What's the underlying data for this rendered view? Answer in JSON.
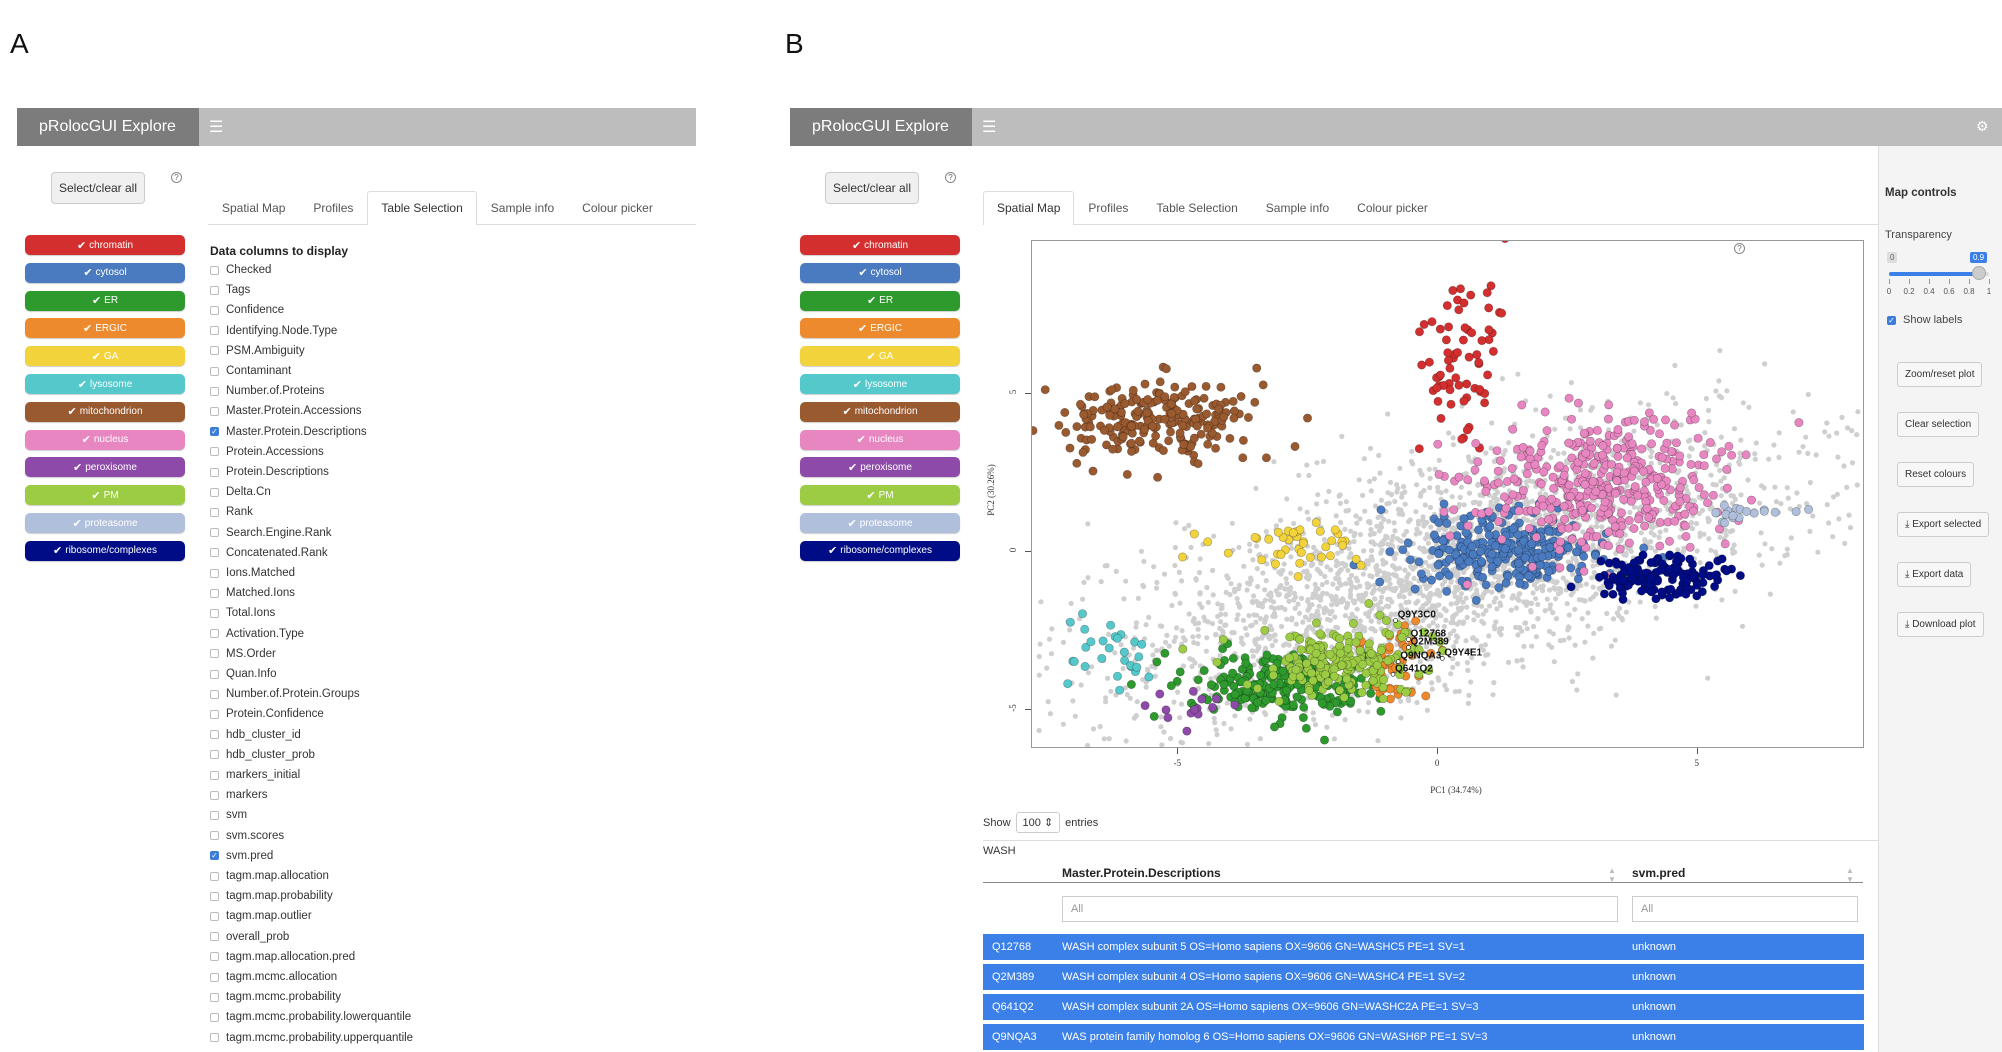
{
  "panels": {
    "a_letter": "A",
    "b_letter": "B"
  },
  "app": {
    "title": "pRolocGUI Explore",
    "menu_icon": "hamburger-icon",
    "settings_icon": "gear-icon"
  },
  "select_all_label": "Select/clear all",
  "classes": [
    {
      "label": "chromatin",
      "color": "#d32f2f"
    },
    {
      "label": "cytosol",
      "color": "#4a7abf"
    },
    {
      "label": "ER",
      "color": "#2e9a2e"
    },
    {
      "label": "ERGIC",
      "color": "#ee8a2e"
    },
    {
      "label": "GA",
      "color": "#f2d33c"
    },
    {
      "label": "lysosome",
      "color": "#55c8cc"
    },
    {
      "label": "mitochondrion",
      "color": "#9a5a30"
    },
    {
      "label": "nucleus",
      "color": "#e886c1"
    },
    {
      "label": "peroxisome",
      "color": "#8e4aa8"
    },
    {
      "label": "PM",
      "color": "#9ccc44"
    },
    {
      "label": "proteasome",
      "color": "#b0c0dc"
    },
    {
      "label": "ribosome/complexes",
      "color": "#000c86"
    }
  ],
  "tabs": [
    "Spatial Map",
    "Profiles",
    "Table Selection",
    "Sample info",
    "Colour picker"
  ],
  "table_selection": {
    "title": "Data columns to display",
    "columns": [
      {
        "name": "Checked",
        "checked": false
      },
      {
        "name": "Tags",
        "checked": false
      },
      {
        "name": "Confidence",
        "checked": false
      },
      {
        "name": "Identifying.Node.Type",
        "checked": false
      },
      {
        "name": "PSM.Ambiguity",
        "checked": false
      },
      {
        "name": "Contaminant",
        "checked": false
      },
      {
        "name": "Number.of.Proteins",
        "checked": false
      },
      {
        "name": "Master.Protein.Accessions",
        "checked": false
      },
      {
        "name": "Master.Protein.Descriptions",
        "checked": true
      },
      {
        "name": "Protein.Accessions",
        "checked": false
      },
      {
        "name": "Protein.Descriptions",
        "checked": false
      },
      {
        "name": "Delta.Cn",
        "checked": false
      },
      {
        "name": "Rank",
        "checked": false
      },
      {
        "name": "Search.Engine.Rank",
        "checked": false
      },
      {
        "name": "Concatenated.Rank",
        "checked": false
      },
      {
        "name": "Ions.Matched",
        "checked": false
      },
      {
        "name": "Matched.Ions",
        "checked": false
      },
      {
        "name": "Total.Ions",
        "checked": false
      },
      {
        "name": "Activation.Type",
        "checked": false
      },
      {
        "name": "MS.Order",
        "checked": false
      },
      {
        "name": "Quan.Info",
        "checked": false
      },
      {
        "name": "Number.of.Protein.Groups",
        "checked": false
      },
      {
        "name": "Protein.Confidence",
        "checked": false
      },
      {
        "name": "hdb_cluster_id",
        "checked": false
      },
      {
        "name": "hdb_cluster_prob",
        "checked": false
      },
      {
        "name": "markers_initial",
        "checked": false
      },
      {
        "name": "markers",
        "checked": false
      },
      {
        "name": "svm",
        "checked": false
      },
      {
        "name": "svm.scores",
        "checked": false
      },
      {
        "name": "svm.pred",
        "checked": true
      },
      {
        "name": "tagm.map.allocation",
        "checked": false
      },
      {
        "name": "tagm.map.probability",
        "checked": false
      },
      {
        "name": "tagm.map.outlier",
        "checked": false
      },
      {
        "name": "overall_prob",
        "checked": false
      },
      {
        "name": "tagm.map.allocation.pred",
        "checked": false
      },
      {
        "name": "tagm.mcmc.allocation",
        "checked": false
      },
      {
        "name": "tagm.mcmc.probability",
        "checked": false
      },
      {
        "name": "tagm.mcmc.probability.lowerquantile",
        "checked": false
      },
      {
        "name": "tagm.mcmc.probability.upperquantile",
        "checked": false
      }
    ]
  },
  "map_controls": {
    "title": "Map controls",
    "transparency_label": "Transparency",
    "slider_min": "0",
    "slider_value": "0.9",
    "slider_value_num": 0.9,
    "ticks": [
      "0",
      "0.2",
      "0.4",
      "0.6",
      "0.8",
      "1"
    ],
    "show_labels_label": "Show labels",
    "buttons": [
      "Zoom/reset plot",
      "Clear selection",
      "Reset colours",
      "Export selected",
      "Export data",
      "Download plot"
    ],
    "download_icon": "download-icon"
  },
  "chart_data": {
    "type": "scatter",
    "xlabel": "PC1 (34.74%)",
    "ylabel": "PC2 (30.26%)",
    "xticks": [
      "-5",
      "0",
      "5"
    ],
    "yticks": [
      "-5",
      "0",
      "5"
    ],
    "xlim": [
      -7.8,
      8.2
    ],
    "ylim": [
      -6.2,
      9.8
    ],
    "grid": false,
    "series": [
      {
        "name": "chromatin",
        "color": "#d32f2f",
        "cx": 0.4,
        "cy": 6.2,
        "sx": 0.4,
        "sy": 1.4,
        "n": 70
      },
      {
        "name": "cytosol",
        "color": "#4a7abf",
        "cx": 1.4,
        "cy": 0.0,
        "sx": 1.0,
        "sy": 0.6,
        "n": 260
      },
      {
        "name": "ER",
        "color": "#2e9a2e",
        "cx": -3.0,
        "cy": -4.3,
        "sx": 0.9,
        "sy": 0.5,
        "n": 220
      },
      {
        "name": "ERGIC",
        "color": "#ee8a2e",
        "cx": -0.8,
        "cy": -3.4,
        "sx": 0.4,
        "sy": 0.6,
        "n": 40
      },
      {
        "name": "GA",
        "color": "#f2d33c",
        "cx": -2.4,
        "cy": 0.3,
        "sx": 0.7,
        "sy": 0.5,
        "n": 40
      },
      {
        "name": "lysosome",
        "color": "#55c8cc",
        "cx": -6.3,
        "cy": -3.2,
        "sx": 0.6,
        "sy": 0.7,
        "n": 28
      },
      {
        "name": "mitochondrion",
        "color": "#9a5a30",
        "cx": -5.4,
        "cy": 4.2,
        "sx": 0.9,
        "sy": 0.7,
        "n": 230
      },
      {
        "name": "nucleus",
        "color": "#e886c1",
        "cx": 3.2,
        "cy": 2.2,
        "sx": 1.3,
        "sy": 1.1,
        "n": 380
      },
      {
        "name": "peroxisome",
        "color": "#8e4aa8",
        "cx": -4.9,
        "cy": -5.0,
        "sx": 0.4,
        "sy": 0.3,
        "n": 14
      },
      {
        "name": "PM",
        "color": "#9ccc44",
        "cx": -1.8,
        "cy": -3.5,
        "sx": 0.8,
        "sy": 0.6,
        "n": 190
      },
      {
        "name": "proteasome",
        "color": "#b0c0dc",
        "cx": 5.9,
        "cy": 1.2,
        "sx": 0.5,
        "sy": 0.15,
        "n": 18
      },
      {
        "name": "ribosome/complexes",
        "color": "#000c86",
        "cx": 4.3,
        "cy": -0.8,
        "sx": 0.6,
        "sy": 0.35,
        "n": 140
      }
    ],
    "unknown": {
      "color": "#cfcfcf",
      "n": 2600
    },
    "labels": [
      {
        "text": "Q9Y3C0",
        "x": -0.8,
        "y": -2.2
      },
      {
        "text": "Q12768",
        "x": -0.55,
        "y": -2.8
      },
      {
        "text": "Q2M389",
        "x": -0.55,
        "y": -3.05
      },
      {
        "text": "Q9NQA3",
        "x": -0.75,
        "y": -3.5
      },
      {
        "text": "Q9Y4E1",
        "x": 0.1,
        "y": -3.4
      },
      {
        "text": "Q641Q2",
        "x": -0.85,
        "y": -3.9
      }
    ]
  },
  "datatable": {
    "show_label": "Show",
    "show_value": "100",
    "entries_label": "entries",
    "search_text": "WASH",
    "headers": [
      "Master.Protein.Descriptions",
      "svm.pred"
    ],
    "filter_placeholder": "All",
    "rows": [
      {
        "id": "Q12768",
        "desc": "WASH complex subunit 5 OS=Homo sapiens OX=9606 GN=WASHC5 PE=1 SV=1",
        "pred": "unknown"
      },
      {
        "id": "Q2M389",
        "desc": "WASH complex subunit 4 OS=Homo sapiens OX=9606 GN=WASHC4 PE=1 SV=2",
        "pred": "unknown"
      },
      {
        "id": "Q641Q2",
        "desc": "WASH complex subunit 2A OS=Homo sapiens OX=9606 GN=WASHC2A PE=1 SV=3",
        "pred": "unknown"
      },
      {
        "id": "Q9NQA3",
        "desc": "WAS protein family homolog 6 OS=Homo sapiens OX=9606 GN=WASH6P PE=1 SV=3",
        "pred": "unknown"
      }
    ]
  }
}
